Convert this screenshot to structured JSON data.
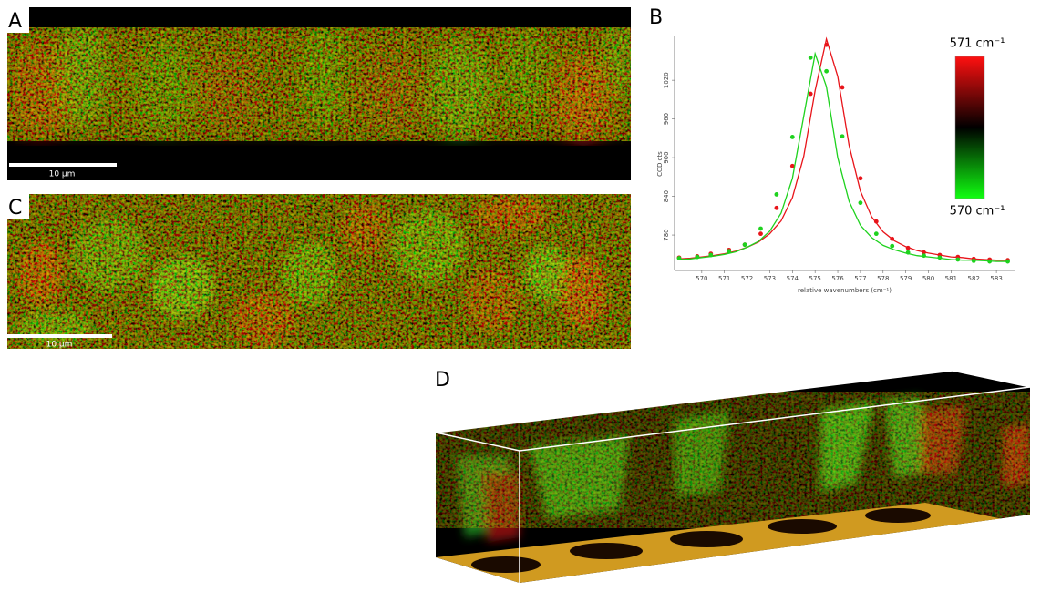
{
  "panels": {
    "A": {
      "label": "A",
      "scale_bar": "10 µm"
    },
    "C": {
      "label": "C",
      "scale_bar": "10 µm"
    },
    "D": {
      "label": "D"
    }
  },
  "chart_data": {
    "type": "line",
    "panel_label": "B",
    "x_label": "relative wavenumbers (cm⁻¹)",
    "y_label": "CCD cts",
    "x": [
      569.0,
      569.8,
      570.4,
      571.2,
      571.9,
      572.6,
      573.3,
      574.0,
      574.8,
      575.5,
      576.2,
      577.0,
      577.7,
      578.4,
      579.1,
      579.8,
      580.5,
      581.3,
      582.0,
      582.7,
      583.5
    ],
    "fit_x": [
      569,
      569.5,
      570,
      570.5,
      571,
      571.5,
      572,
      572.5,
      573,
      573.5,
      574,
      574.5,
      575,
      575.5,
      576,
      576.5,
      577,
      577.5,
      578,
      578.5,
      579,
      579.5,
      580,
      580.5,
      581,
      581.5,
      582,
      582.5,
      583,
      583.5
    ],
    "series": [
      {
        "color": "#e8141a",
        "values": [
          745,
          747,
          751,
          757,
          765,
          782,
          822,
          887,
          999,
          1075,
          1009,
          868,
          801,
          774,
          760,
          753,
          749,
          746,
          743,
          742,
          741
        ],
        "fit": [
          743,
          744,
          746,
          748,
          751,
          755,
          761,
          769,
          782,
          802,
          838,
          902,
          1004,
          1084,
          1026,
          919,
          848,
          808,
          785,
          771,
          762,
          756,
          752,
          749,
          746,
          745,
          743,
          742,
          741,
          741
        ]
      },
      {
        "color": "#1ed21e",
        "values": [
          744,
          746,
          749,
          755,
          765,
          790,
          843,
          932,
          1055,
          1034,
          933,
          830,
          782,
          763,
          753,
          748,
          745,
          742,
          740,
          739,
          739
        ],
        "fit": [
          742,
          743,
          745,
          747,
          750,
          754,
          761,
          770,
          786,
          814,
          868,
          964,
          1061,
          1010,
          900,
          832,
          795,
          776,
          764,
          757,
          752,
          748,
          746,
          744,
          742,
          741,
          741,
          740,
          739,
          739
        ]
      }
    ],
    "xlim": [
      568.8,
      583.8
    ],
    "ylim": [
      725,
      1088
    ],
    "xticks": [
      570,
      571,
      572,
      573,
      574,
      575,
      576,
      577,
      578,
      579,
      580,
      581,
      582,
      583
    ],
    "yticks": [
      780,
      840,
      900,
      960,
      1020
    ],
    "colorbar": {
      "top_label": "571 cm⁻¹",
      "bottom_label": "570 cm⁻¹",
      "top_color": "#ff1010",
      "mid_color": "#000000",
      "bottom_color": "#10ff10"
    }
  }
}
